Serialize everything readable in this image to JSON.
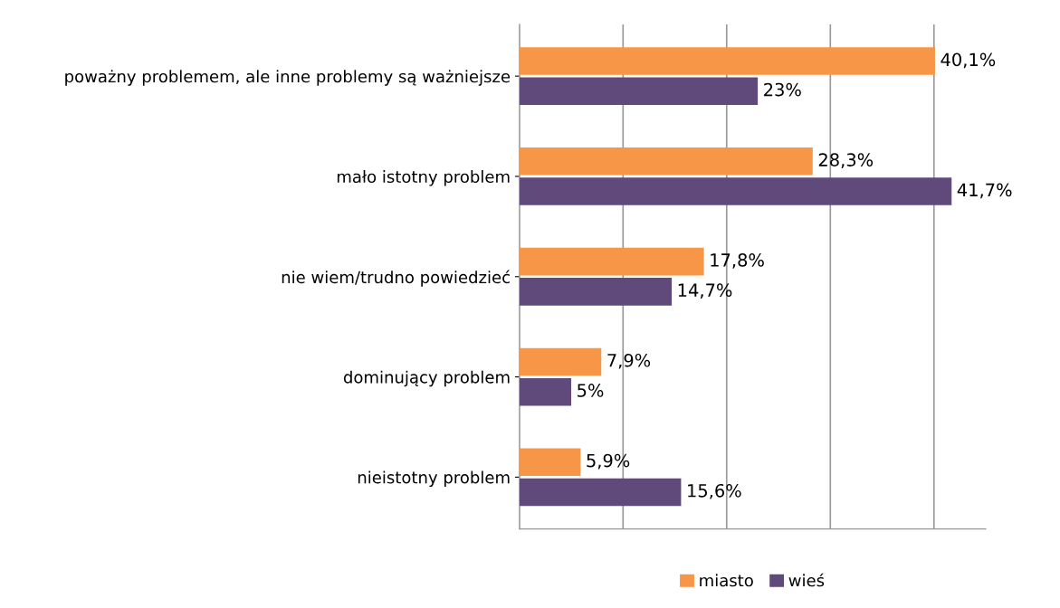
{
  "chart_data": {
    "type": "bar",
    "orientation": "horizontal",
    "categories": [
      "poważny problemem, ale inne problemy są ważniejsze",
      "mało istotny problem",
      "nie wiem/trudno powiedzieć",
      "dominujący problem",
      "nieistotny problem"
    ],
    "series": [
      {
        "name": "miasto",
        "color": "#f79646",
        "values": [
          40.1,
          28.3,
          17.8,
          7.9,
          5.9
        ],
        "value_labels": [
          "40,1%",
          "28,3%",
          "17,8%",
          "7,9%",
          "5,9%"
        ]
      },
      {
        "name": "wieś",
        "color": "#604a7b",
        "values": [
          23,
          41.7,
          14.7,
          5,
          15.6
        ],
        "value_labels": [
          "23%",
          "41,7%",
          "14,7%",
          "5%",
          "15,6%"
        ]
      }
    ],
    "xlim": [
      0,
      45
    ],
    "xticks": [
      {
        "value": 0,
        "label": null
      },
      {
        "value": 10,
        "label": null
      },
      {
        "value": 20,
        "label": null
      },
      {
        "value": 30,
        "label": null
      },
      {
        "value": 40,
        "label": null
      }
    ],
    "grid": "x",
    "legend": "bottom",
    "tick_labels": "y"
  }
}
